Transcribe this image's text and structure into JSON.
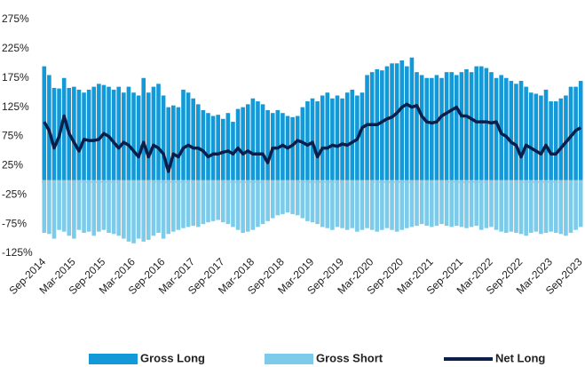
{
  "chart_data": {
    "type": "bar_line",
    "categories": [
      "Sep-2014",
      null,
      null,
      null,
      null,
      null,
      "Mar-2015",
      null,
      null,
      null,
      null,
      null,
      "Sep-2015",
      null,
      null,
      null,
      null,
      null,
      "Mar-2016",
      null,
      null,
      null,
      null,
      null,
      "Sep-2016",
      null,
      null,
      null,
      null,
      null,
      "Mar-2017",
      null,
      null,
      null,
      null,
      null,
      "Sep-2017",
      null,
      null,
      null,
      null,
      null,
      "Mar-2018",
      null,
      null,
      null,
      null,
      null,
      "Sep-2018",
      null,
      null,
      null,
      null,
      null,
      "Mar-2019",
      null,
      null,
      null,
      null,
      null,
      "Sep-2019",
      null,
      null,
      null,
      null,
      null,
      "Mar-2020",
      null,
      null,
      null,
      null,
      null,
      "Sep-2020",
      null,
      null,
      null,
      null,
      null,
      "Mar-2021",
      null,
      null,
      null,
      null,
      null,
      "Sep-2021",
      null,
      null,
      null,
      null,
      null,
      "Mar-2022",
      null,
      null,
      null,
      null,
      null,
      "Sep-2022",
      null,
      null,
      null,
      null,
      null,
      "Mar-2023",
      null,
      null,
      null,
      null,
      null,
      "Sep-2023"
    ],
    "series": [
      {
        "name": "Gross Long",
        "kind": "bar",
        "color": "#1499d8",
        "values": [
          195,
          180,
          158,
          157,
          175,
          158,
          160,
          155,
          150,
          155,
          160,
          165,
          163,
          160,
          155,
          160,
          150,
          160,
          150,
          145,
          175,
          150,
          160,
          165,
          145,
          125,
          128,
          125,
          155,
          150,
          140,
          130,
          120,
          115,
          110,
          112,
          105,
          115,
          100,
          122,
          125,
          130,
          140,
          135,
          130,
          120,
          115,
          120,
          115,
          110,
          108,
          110,
          125,
          135,
          140,
          135,
          145,
          150,
          140,
          145,
          140,
          150,
          155,
          145,
          150,
          180,
          185,
          190,
          188,
          195,
          200,
          200,
          205,
          195,
          210,
          185,
          180,
          175,
          175,
          180,
          175,
          185,
          185,
          180,
          185,
          190,
          185,
          195,
          195,
          192,
          185,
          175,
          180,
          175,
          170,
          165,
          170,
          160,
          150,
          148,
          145,
          155,
          135,
          135,
          140,
          145,
          160,
          160,
          170
        ]
      },
      {
        "name": "Gross Short",
        "kind": "bar",
        "color": "#7ccbea",
        "values": [
          -90,
          -92,
          -100,
          -85,
          -88,
          -95,
          -100,
          -85,
          -90,
          -88,
          -95,
          -88,
          -85,
          -90,
          -92,
          -95,
          -100,
          -105,
          -108,
          -100,
          -105,
          -102,
          -95,
          -90,
          -100,
          -92,
          -88,
          -85,
          -82,
          -80,
          -78,
          -80,
          -75,
          -72,
          -70,
          -68,
          -72,
          -75,
          -80,
          -85,
          -90,
          -88,
          -85,
          -80,
          -75,
          -70,
          -65,
          -60,
          -58,
          -55,
          -58,
          -60,
          -65,
          -70,
          -72,
          -75,
          -80,
          -82,
          -85,
          -80,
          -82,
          -85,
          -82,
          -88,
          -85,
          -82,
          -85,
          -88,
          -85,
          -82,
          -85,
          -88,
          -85,
          -82,
          -80,
          -78,
          -75,
          -78,
          -80,
          -78,
          -75,
          -78,
          -80,
          -78,
          -80,
          -82,
          -80,
          -78,
          -85,
          -82,
          -80,
          -85,
          -88,
          -90,
          -88,
          -90,
          -92,
          -95,
          -90,
          -88,
          -92,
          -90,
          -88,
          -90,
          -92,
          -95,
          -90,
          -85,
          -80
        ]
      },
      {
        "name": "Net Long",
        "kind": "line",
        "color": "#0b1f4a",
        "values": [
          100,
          85,
          55,
          75,
          110,
          80,
          65,
          50,
          70,
          68,
          68,
          70,
          80,
          75,
          65,
          55,
          65,
          60,
          50,
          40,
          65,
          40,
          60,
          55,
          45,
          15,
          45,
          40,
          55,
          60,
          55,
          55,
          50,
          40,
          45,
          45,
          48,
          50,
          45,
          55,
          45,
          50,
          45,
          45,
          45,
          30,
          55,
          55,
          60,
          55,
          60,
          68,
          65,
          60,
          65,
          40,
          55,
          55,
          60,
          58,
          62,
          60,
          65,
          70,
          90,
          95,
          95,
          95,
          100,
          105,
          108,
          115,
          125,
          130,
          125,
          128,
          110,
          100,
          98,
          100,
          110,
          115,
          120,
          125,
          110,
          110,
          105,
          100,
          100,
          100,
          98,
          100,
          80,
          75,
          65,
          60,
          40,
          60,
          55,
          50,
          45,
          60,
          45,
          45,
          55,
          65,
          75,
          85,
          90
        ]
      }
    ],
    "ylim": [
      -125,
      275
    ],
    "yticks": [
      {
        "value": -125,
        "label": "-125%"
      },
      {
        "value": -75,
        "label": "-75%"
      },
      {
        "value": -25,
        "label": "-25%"
      },
      {
        "value": 25,
        "label": "25%"
      },
      {
        "value": 75,
        "label": "75%"
      },
      {
        "value": 125,
        "label": "125%"
      },
      {
        "value": 175,
        "label": "175%"
      },
      {
        "value": 225,
        "label": "225%"
      },
      {
        "value": 275,
        "label": "275%"
      }
    ],
    "grid": false,
    "legend": "bottom"
  }
}
